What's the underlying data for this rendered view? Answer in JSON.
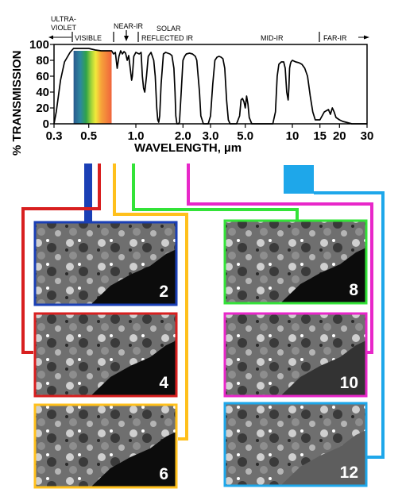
{
  "chart_data": {
    "type": "line",
    "title": "",
    "xlabel": "WAVELENGTH, µm",
    "ylabel": "% TRANSMISSION",
    "x_scale": "log",
    "xlim": [
      0.3,
      30
    ],
    "ylim": [
      0,
      100
    ],
    "x_ticks": [
      "0.3",
      "0.5",
      "1.0",
      "2.0",
      "3.0",
      "5.0",
      "10",
      "15",
      "20",
      "30"
    ],
    "y_ticks": [
      "0",
      "20",
      "40",
      "60",
      "80",
      "100"
    ],
    "bands": [
      {
        "lines": [
          "ULTRA-",
          "VIOLET"
        ]
      },
      {
        "lines": [
          "VISIBLE"
        ]
      },
      {
        "lines": [
          "NEAR-IR"
        ]
      },
      {
        "lines": [
          "SOLAR",
          "REFLECTED IR"
        ]
      },
      {
        "lines": [
          "MID-IR"
        ]
      },
      {
        "lines": [
          "FAR-IR"
        ]
      }
    ],
    "visible_spectrum": {
      "from": 0.4,
      "to": 0.7
    },
    "series": [
      {
        "x": [
          0.3,
          0.31,
          0.32,
          0.33,
          0.35,
          0.38,
          0.4,
          0.45,
          0.5,
          0.55,
          0.6,
          0.65,
          0.7,
          0.72,
          0.74,
          0.76,
          0.78,
          0.8,
          0.82,
          0.84,
          0.86,
          0.88,
          0.9,
          0.92,
          0.94,
          0.95,
          0.97,
          1.0,
          1.05,
          1.08,
          1.1,
          1.12,
          1.14,
          1.17,
          1.2,
          1.25,
          1.3,
          1.33,
          1.36,
          1.38,
          1.4,
          1.42,
          1.45,
          1.5,
          1.55,
          1.6,
          1.65,
          1.7,
          1.75,
          1.78,
          1.8,
          1.83,
          1.87,
          1.9,
          1.95,
          2.0,
          2.05,
          2.1,
          2.2,
          2.3,
          2.4,
          2.45,
          2.5,
          2.55,
          2.6,
          2.7,
          2.8,
          2.9,
          3.0,
          3.05,
          3.1,
          3.2,
          3.3,
          3.4,
          3.5,
          3.6,
          3.7,
          3.8,
          3.9,
          4.0,
          4.1,
          4.2,
          4.3,
          4.4,
          4.5,
          4.6,
          4.7,
          4.8,
          4.9,
          5.0,
          5.1,
          5.2,
          5.3,
          5.5,
          5.7,
          6.0,
          6.5,
          7.0,
          7.5,
          7.8,
          8.0,
          8.2,
          8.5,
          8.8,
          9.0,
          9.2,
          9.4,
          9.5,
          9.6,
          9.7,
          9.8,
          10.0,
          10.5,
          11.0,
          11.5,
          12.0,
          12.5,
          13.0,
          13.5,
          14.0,
          15.0,
          16.0,
          17.0,
          17.5,
          18.0,
          18.5,
          19.0,
          20.0,
          21.0,
          22.0,
          24.0,
          26.0,
          30.0
        ],
        "y": [
          0,
          15,
          35,
          55,
          78,
          90,
          95,
          95,
          95,
          93,
          92,
          92,
          92,
          88,
          90,
          70,
          85,
          92,
          88,
          91,
          89,
          80,
          86,
          70,
          55,
          60,
          85,
          90,
          88,
          90,
          60,
          45,
          40,
          60,
          85,
          90,
          80,
          60,
          20,
          5,
          2,
          10,
          50,
          88,
          90,
          89,
          88,
          86,
          70,
          40,
          10,
          0,
          0,
          2,
          40,
          80,
          85,
          88,
          89,
          88,
          85,
          80,
          60,
          40,
          10,
          0,
          0,
          0,
          10,
          30,
          50,
          80,
          84,
          85,
          84,
          82,
          70,
          30,
          5,
          0,
          0,
          0,
          0,
          0,
          5,
          10,
          30,
          32,
          28,
          20,
          35,
          25,
          8,
          0,
          0,
          0,
          0,
          0,
          0,
          15,
          60,
          75,
          78,
          78,
          70,
          40,
          30,
          45,
          70,
          75,
          78,
          80,
          78,
          77,
          75,
          70,
          60,
          35,
          15,
          5,
          5,
          15,
          18,
          12,
          20,
          15,
          8,
          5,
          3,
          2,
          0,
          0,
          0
        ]
      }
    ]
  },
  "panels": [
    {
      "number": "2"
    },
    {
      "number": "4"
    },
    {
      "number": "6"
    },
    {
      "number": "8"
    },
    {
      "number": "10"
    },
    {
      "number": "12"
    }
  ],
  "colors": {
    "band2": "#1a3fb5",
    "band4": "#d81f1f",
    "band6": "#ffc01c",
    "band8": "#33e338",
    "band10": "#e827c9",
    "band12": "#1ea7ea"
  }
}
